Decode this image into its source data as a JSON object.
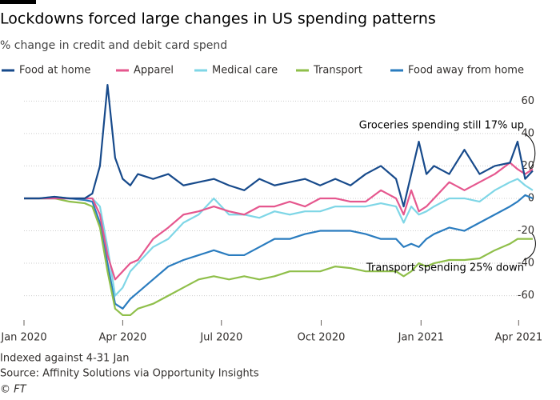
{
  "chart_data": {
    "type": "line",
    "title": "Lockdowns forced large changes in US spending patterns",
    "subtitle": "% change in credit and debit card spend",
    "notes": "Indexed against 4-31 Jan",
    "source": "Source: Affinity Solutions via Opportunity Insights",
    "credit": "© FT",
    "annotations": [
      "Groceries spending still 17% up",
      "Transport spending 25% down"
    ],
    "x": [
      0,
      14,
      28,
      42,
      56,
      63,
      70,
      77,
      84,
      91,
      98,
      105,
      119,
      133,
      147,
      161,
      175,
      189,
      203,
      217,
      231,
      245,
      259,
      273,
      287,
      301,
      315,
      329,
      343,
      350,
      357,
      364,
      371,
      378,
      392,
      406,
      420,
      434,
      448,
      455,
      462,
      469
    ],
    "xlim": [
      0,
      472
    ],
    "xticks": [
      {
        "value": 0,
        "label": "Jan 2020"
      },
      {
        "value": 91,
        "label": "Apr 2020"
      },
      {
        "value": 182,
        "label": "Jul 2020"
      },
      {
        "value": 274,
        "label": "Oct 2020"
      },
      {
        "value": 366,
        "label": "Jan 2021"
      },
      {
        "value": 456,
        "label": "Apr 2021"
      }
    ],
    "ylim": [
      -75,
      73
    ],
    "yticks": [
      60,
      40,
      20,
      0,
      -20,
      -40,
      -60
    ],
    "grid": true,
    "series": [
      {
        "name": "Food at home",
        "color": "#174a8b",
        "values": [
          0,
          0,
          1,
          0,
          0,
          3,
          20,
          70,
          25,
          12,
          8,
          15,
          12,
          15,
          8,
          10,
          12,
          8,
          5,
          12,
          8,
          10,
          12,
          8,
          12,
          8,
          15,
          20,
          12,
          -5,
          15,
          35,
          15,
          20,
          15,
          30,
          15,
          20,
          22,
          35,
          12,
          17
        ]
      },
      {
        "name": "Apparel",
        "color": "#e5578e",
        "values": [
          0,
          0,
          0,
          0,
          0,
          0,
          -10,
          -35,
          -50,
          -45,
          -40,
          -38,
          -25,
          -18,
          -10,
          -8,
          -5,
          -8,
          -10,
          -5,
          -5,
          -2,
          -5,
          0,
          0,
          -2,
          -2,
          5,
          0,
          -10,
          5,
          -8,
          -5,
          0,
          10,
          5,
          10,
          15,
          22,
          18,
          15,
          18
        ]
      },
      {
        "name": "Medical care",
        "color": "#7fd6e6",
        "values": [
          0,
          0,
          1,
          0,
          0,
          0,
          -5,
          -30,
          -60,
          -55,
          -45,
          -40,
          -30,
          -25,
          -15,
          -10,
          0,
          -10,
          -10,
          -12,
          -8,
          -10,
          -8,
          -8,
          -5,
          -5,
          -5,
          -3,
          -5,
          -15,
          -5,
          -10,
          -8,
          -5,
          0,
          0,
          -2,
          5,
          10,
          12,
          8,
          5
        ]
      },
      {
        "name": "Transport",
        "color": "#8fbf4a",
        "values": [
          0,
          0,
          0,
          -2,
          -3,
          -5,
          -18,
          -45,
          -68,
          -72,
          -72,
          -68,
          -65,
          -60,
          -55,
          -50,
          -48,
          -50,
          -48,
          -50,
          -48,
          -45,
          -45,
          -45,
          -42,
          -43,
          -45,
          -45,
          -45,
          -48,
          -45,
          -40,
          -42,
          -40,
          -38,
          -38,
          -37,
          -32,
          -28,
          -25,
          -25,
          -25
        ]
      },
      {
        "name": "Food away from home",
        "color": "#2a7cbf",
        "values": [
          0,
          0,
          0,
          0,
          -1,
          -2,
          -15,
          -40,
          -65,
          -68,
          -62,
          -58,
          -50,
          -42,
          -38,
          -35,
          -32,
          -35,
          -35,
          -30,
          -25,
          -25,
          -22,
          -20,
          -20,
          -20,
          -22,
          -25,
          -25,
          -30,
          -28,
          -30,
          -25,
          -22,
          -18,
          -20,
          -15,
          -10,
          -5,
          -2,
          2,
          0
        ]
      }
    ]
  }
}
